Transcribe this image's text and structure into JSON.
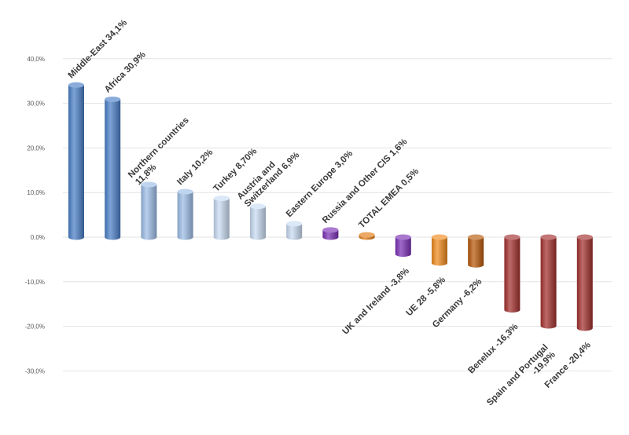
{
  "chart_data": {
    "type": "bar",
    "style": "3d-cylinder",
    "grid": true,
    "legend": "none",
    "ylim": [
      -30,
      40
    ],
    "yticks": [
      {
        "value": 40,
        "label": "40,0%"
      },
      {
        "value": 30,
        "label": "30,0%"
      },
      {
        "value": 20,
        "label": "20,0%"
      },
      {
        "value": 10,
        "label": "10,0%"
      },
      {
        "value": 0,
        "label": "0,0%"
      },
      {
        "value": -10,
        "label": "-10,0%"
      },
      {
        "value": -20,
        "label": "-20,0%"
      },
      {
        "value": -30,
        "label": "-30,0%"
      }
    ],
    "bars": [
      {
        "category": "Middle-East",
        "value": 34.1,
        "label": [
          "Middle-East 34,1%"
        ],
        "color": "#4a7fc8"
      },
      {
        "category": "Africa",
        "value": 30.9,
        "label": [
          "Africa 30,9%"
        ],
        "color": "#4a7fc8"
      },
      {
        "category": "Northern countries",
        "value": 11.8,
        "label": [
          "Northern countries",
          "11,8%"
        ],
        "color": "#9dbde6"
      },
      {
        "category": "Italy",
        "value": 10.2,
        "label": [
          "Italy 10,2%"
        ],
        "color": "#9dbde6"
      },
      {
        "category": "Turkey",
        "value": 8.7,
        "label": [
          "Turkey 8,70%"
        ],
        "color": "#c8dbf2"
      },
      {
        "category": "Austria and Switzerland",
        "value": 6.9,
        "label": [
          "Austria and",
          "Switzerland 6,9%"
        ],
        "color": "#c8dbf2"
      },
      {
        "category": "Eastern Europe",
        "value": 3.0,
        "label": [
          "Eastern Europe 3,0%"
        ],
        "color": "#c8dbf2"
      },
      {
        "category": "Russia and Other CIS",
        "value": 1.6,
        "label": [
          "Russia and Other CIS 1,6%"
        ],
        "color": "#7a2fb5"
      },
      {
        "category": "TOTAL EMEA",
        "value": 0.5,
        "label": [
          "TOTAL EMEA 0,5%"
        ],
        "color": "#e07a12"
      },
      {
        "category": "UK and Ireland",
        "value": -3.8,
        "label": [
          "UK and Ireland -3,8%"
        ],
        "color": "#7a2fb5"
      },
      {
        "category": "UE 28",
        "value": -5.8,
        "label": [
          "UE 28 -5,8%"
        ],
        "color": "#f08a1c"
      },
      {
        "category": "Germany",
        "value": -6.2,
        "label": [
          "Germany -6,2%"
        ],
        "color": "#b8590a"
      },
      {
        "category": "Benelux",
        "value": -16.3,
        "label": [
          "Benelux -16,3%"
        ],
        "color": "#a3302e"
      },
      {
        "category": "Spain and Portugal",
        "value": -19.9,
        "label": [
          "Spain and Portugal",
          "-19,9%"
        ],
        "color": "#a3302e"
      },
      {
        "category": "France",
        "value": -20.4,
        "label": [
          "France -20,4%"
        ],
        "color": "#a3302e"
      }
    ]
  }
}
